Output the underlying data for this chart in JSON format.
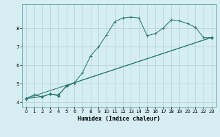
{
  "xlabel": "Humidex (Indice chaleur)",
  "background_color": "#d6eef2",
  "grid_color": "#b8d8de",
  "line_color": "#2e7d6e",
  "xlim": [
    -0.5,
    23.5
  ],
  "ylim": [
    3.75,
    9.3
  ],
  "yticks": [
    4,
    5,
    6,
    7,
    8
  ],
  "xticks": [
    0,
    1,
    2,
    3,
    4,
    5,
    6,
    7,
    8,
    9,
    10,
    11,
    12,
    13,
    14,
    15,
    16,
    17,
    18,
    19,
    20,
    21,
    22,
    23
  ],
  "series1_x": [
    0,
    1,
    2,
    3,
    4,
    5,
    6,
    7,
    8,
    9,
    10,
    11,
    12,
    13,
    14,
    15,
    16,
    17,
    18,
    19,
    20,
    21,
    22,
    23
  ],
  "series1_y": [
    4.2,
    4.4,
    4.3,
    4.45,
    4.4,
    4.85,
    5.05,
    5.6,
    6.5,
    7.0,
    7.65,
    8.35,
    8.55,
    8.6,
    8.55,
    7.6,
    7.7,
    8.0,
    8.45,
    8.4,
    8.25,
    8.05,
    7.5,
    7.5
  ],
  "series2_x": [
    0,
    2,
    3,
    4,
    5,
    6,
    23
  ],
  "series2_y": [
    4.2,
    4.3,
    4.45,
    4.35,
    4.9,
    5.05,
    7.5
  ],
  "series3_x": [
    0,
    23
  ],
  "series3_y": [
    4.2,
    7.5
  ]
}
